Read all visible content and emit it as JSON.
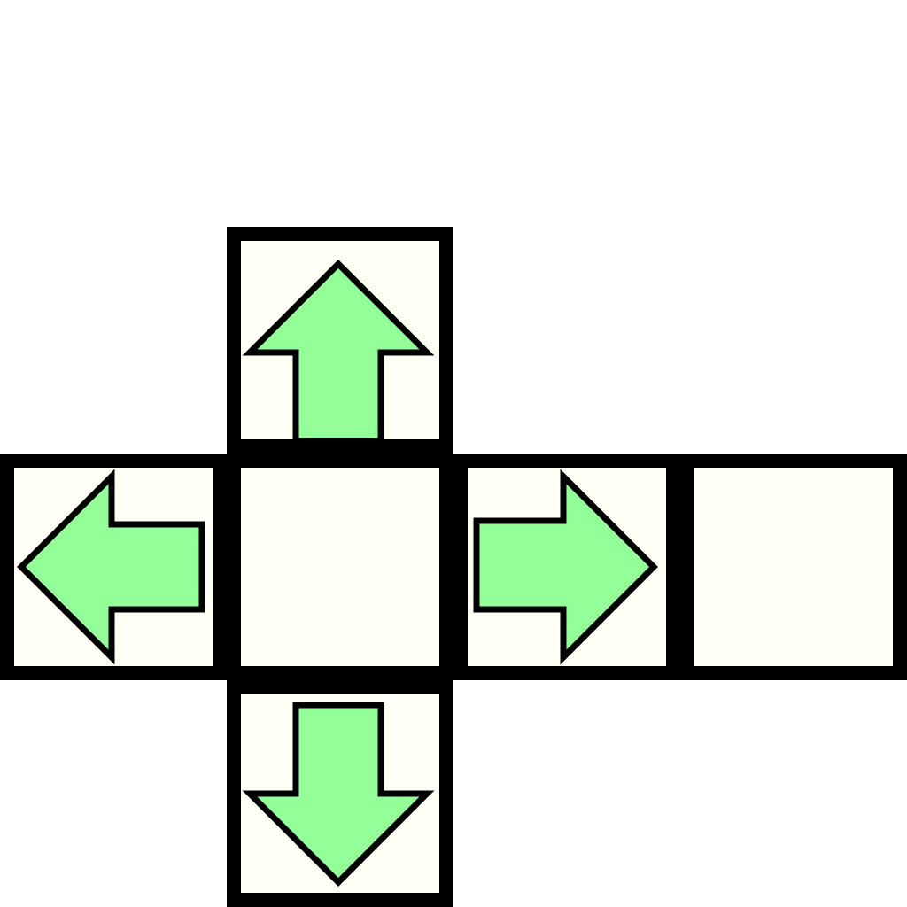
{
  "colors": {
    "tile_border": "#000000",
    "tile_fill": "#fffff5",
    "arrow_fill": "#94ff99",
    "arrow_outline": "#000000",
    "background": "#ffffff"
  },
  "tiles": [
    {
      "id": "tile-up",
      "icon": "arrow-up-icon"
    },
    {
      "id": "tile-left",
      "icon": "arrow-left-icon"
    },
    {
      "id": "tile-center",
      "icon": ""
    },
    {
      "id": "tile-right",
      "icon": "arrow-right-icon"
    },
    {
      "id": "tile-far",
      "icon": ""
    },
    {
      "id": "tile-down",
      "icon": "arrow-down-icon"
    }
  ]
}
